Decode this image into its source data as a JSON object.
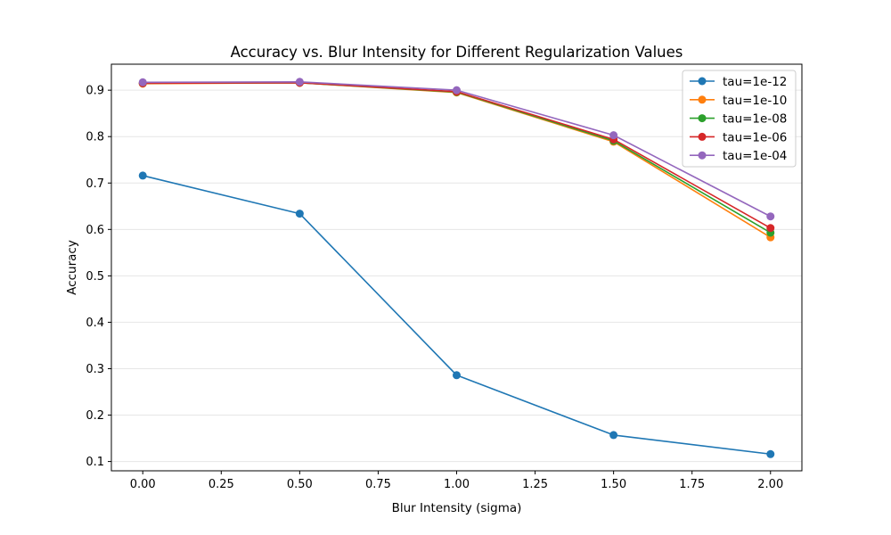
{
  "chart_data": {
    "type": "line",
    "title": "Accuracy vs. Blur Intensity for Different Regularization Values",
    "xlabel": "Blur Intensity (sigma)",
    "ylabel": "Accuracy",
    "x": [
      0.0,
      0.5,
      1.0,
      1.5,
      2.0
    ],
    "xlim": [
      -0.1,
      2.1
    ],
    "ylim": [
      0.08,
      0.956
    ],
    "xticks": [
      0.0,
      0.25,
      0.5,
      0.75,
      1.0,
      1.25,
      1.5,
      1.75,
      2.0
    ],
    "xtick_labels": [
      "0.00",
      "0.25",
      "0.50",
      "0.75",
      "1.00",
      "1.25",
      "1.50",
      "1.75",
      "2.00"
    ],
    "yticks": [
      0.1,
      0.2,
      0.3,
      0.4,
      0.5,
      0.6,
      0.7,
      0.8,
      0.9
    ],
    "ytick_labels": [
      "0.1",
      "0.2",
      "0.3",
      "0.4",
      "0.5",
      "0.6",
      "0.7",
      "0.8",
      "0.9"
    ],
    "grid": "horizontal",
    "legend_position": "top-right",
    "series": [
      {
        "name": "tau=1e-12",
        "color": "#1f77b4",
        "values": [
          0.716,
          0.634,
          0.286,
          0.157,
          0.116
        ]
      },
      {
        "name": "tau=1e-10",
        "color": "#ff7f0e",
        "values": [
          0.914,
          0.916,
          0.895,
          0.789,
          0.583
        ]
      },
      {
        "name": "tau=1e-08",
        "color": "#2ca02c",
        "values": [
          0.915,
          0.916,
          0.896,
          0.791,
          0.593
        ]
      },
      {
        "name": "tau=1e-06",
        "color": "#d62728",
        "values": [
          0.915,
          0.916,
          0.897,
          0.794,
          0.603
        ]
      },
      {
        "name": "tau=1e-04",
        "color": "#9467bd",
        "values": [
          0.917,
          0.918,
          0.9,
          0.803,
          0.628
        ]
      }
    ]
  }
}
